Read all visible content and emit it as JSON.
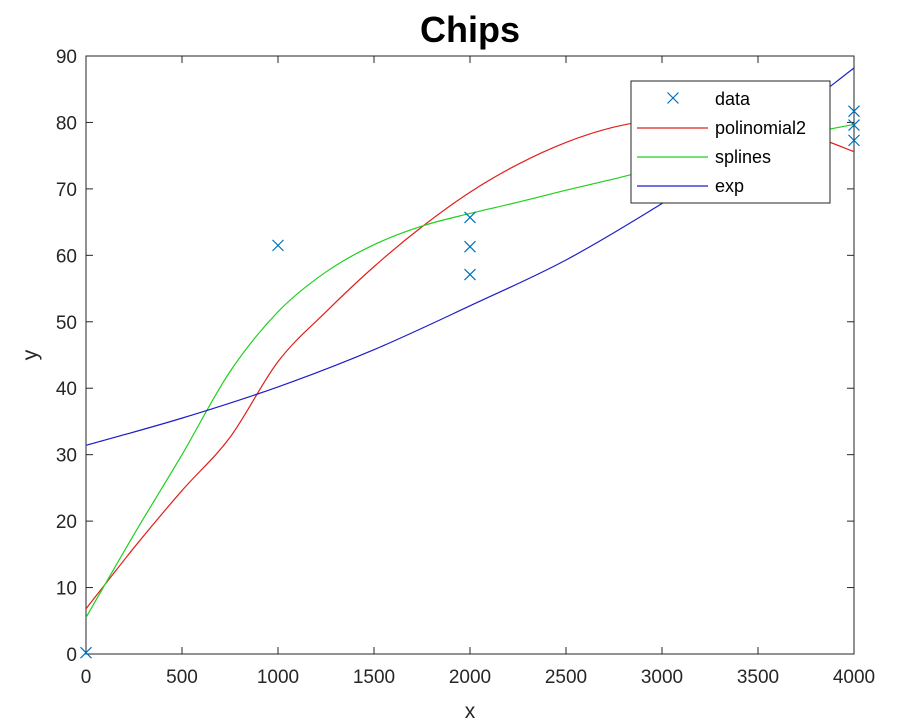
{
  "chart_data": {
    "type": "line",
    "title": "Chips",
    "xlabel": "x",
    "ylabel": "y",
    "xlim": [
      0,
      4000
    ],
    "ylim": [
      0,
      90
    ],
    "xticks": [
      0,
      500,
      1000,
      1500,
      2000,
      2500,
      3000,
      3500,
      4000
    ],
    "yticks": [
      0,
      10,
      20,
      30,
      40,
      50,
      60,
      70,
      80,
      90
    ],
    "grid": false,
    "legend_position": "top-right",
    "series": [
      {
        "name": "data",
        "kind": "scatter",
        "marker": "x",
        "color": "#0072BD",
        "points": [
          [
            0,
            0.2
          ],
          [
            1000,
            61.5
          ],
          [
            2000,
            65.7
          ],
          [
            2000,
            61.3
          ],
          [
            2000,
            57.1
          ],
          [
            4000,
            81.7
          ],
          [
            4000,
            79.6
          ],
          [
            4000,
            77.3
          ]
        ]
      },
      {
        "name": "polinomial2",
        "kind": "line",
        "color": "#E0201B",
        "x": [
          0,
          250,
          500,
          750,
          1000,
          1250,
          1500,
          1750,
          2000,
          2250,
          2500,
          2750,
          3000,
          3250,
          3500,
          3750,
          4000
        ],
        "y": [
          6.8,
          16.0,
          24.6,
          32.6,
          44.0,
          51.5,
          58.3,
          64.3,
          69.5,
          73.7,
          77.0,
          79.3,
          80.5,
          80.7,
          80.0,
          78.3,
          75.6
        ]
      },
      {
        "name": "splines",
        "kind": "line",
        "color": "#1ED01E",
        "x": [
          0,
          250,
          500,
          750,
          1000,
          1250,
          1500,
          1750,
          2000,
          2250,
          2500,
          2750,
          3000,
          3250,
          3500,
          3750,
          4000
        ],
        "y": [
          5.5,
          18.0,
          30.0,
          42.5,
          51.5,
          57.5,
          61.6,
          64.4,
          66.3,
          68.0,
          69.8,
          71.5,
          73.3,
          75.0,
          76.7,
          78.3,
          79.7
        ]
      },
      {
        "name": "exp",
        "kind": "line",
        "color": "#1E1EC8",
        "x": [
          0,
          500,
          1000,
          1500,
          2000,
          2500,
          3000,
          3500,
          4000
        ],
        "y": [
          31.4,
          35.5,
          40.2,
          45.8,
          52.4,
          59.3,
          67.8,
          77.2,
          88.2
        ]
      }
    ]
  }
}
